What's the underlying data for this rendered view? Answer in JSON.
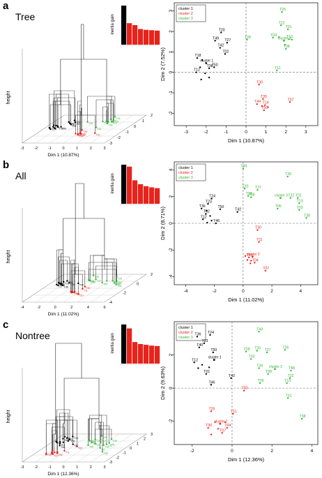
{
  "colors": {
    "cluster1": "#000000",
    "cluster2": "#e8231b",
    "cluster3": "#33b533",
    "axis": "#000000",
    "dash": "#666666"
  },
  "legend_labels": [
    "cluster 1",
    "cluster 2",
    "cluster 3"
  ],
  "panels": [
    {
      "letter": "a",
      "title": "Tree",
      "dendro_ylabel": "height",
      "dendro_xlabel": "Dim 1 (10.87%)",
      "dendro_xticks": [
        "-3",
        "-2",
        "-1",
        "0",
        "1",
        "2",
        "3"
      ],
      "dendro_depth_ticks": [
        "-3",
        "-2",
        "-1",
        "0",
        "1",
        "2"
      ],
      "inertia_ylabel": "inertia gain",
      "inertia_values": [
        1.0,
        0.55,
        0.5,
        0.4,
        0.38,
        0.37,
        0.36
      ],
      "scatter": {
        "xlabel": "Dim 1 (10.87%)",
        "ylabel": "Dim 2 (7.52%)",
        "xlim": [
          -3.6,
          3.6
        ],
        "ylim": [
          -2.6,
          3.4
        ],
        "xticks": [
          -3,
          -2,
          -1,
          0,
          1,
          2,
          3
        ],
        "yticks": [
          -2,
          -1,
          0,
          1,
          2,
          3
        ],
        "points": [
          {
            "x": 1.8,
            "y": 2.95,
            "c": 3,
            "label": "T26"
          },
          {
            "x": 1.75,
            "y": 2.3,
            "c": 3,
            "label": "T22"
          },
          {
            "x": 2.1,
            "y": 2.1,
            "c": 3,
            "label": "T01"
          },
          {
            "x": 1.35,
            "y": 1.7,
            "c": 3,
            "label": "T03"
          },
          {
            "x": 1.65,
            "y": 1.72,
            "c": 3,
            "label": ""
          },
          {
            "x": 2.15,
            "y": 1.62,
            "c": 3,
            "label": "T13"
          },
          {
            "x": 2.3,
            "y": 1.6,
            "c": 3,
            "label": ""
          },
          {
            "x": 1.9,
            "y": 1.55,
            "c": 3,
            "label": "cluster 3"
          },
          {
            "x": 1.95,
            "y": 1.35,
            "c": 3,
            "label": ""
          },
          {
            "x": 2.0,
            "y": 1.15,
            "c": 3,
            "label": "T38"
          },
          {
            "x": 0.05,
            "y": 1.6,
            "c": 3,
            "label": "T28"
          },
          {
            "x": 1.55,
            "y": 0.1,
            "c": 3,
            "label": "T11"
          },
          {
            "x": 0.65,
            "y": -0.6,
            "c": 2,
            "label": "T30"
          },
          {
            "x": 0.85,
            "y": -1.3,
            "c": 2,
            "label": "T35"
          },
          {
            "x": 0.55,
            "y": -1.55,
            "c": 2,
            "label": "T44"
          },
          {
            "x": 0.8,
            "y": -1.65,
            "c": 2,
            "label": ""
          },
          {
            "x": 0.95,
            "y": -1.6,
            "c": 2,
            "label": "T14"
          },
          {
            "x": 1.1,
            "y": -1.7,
            "c": 2,
            "label": ""
          },
          {
            "x": 0.9,
            "y": -1.85,
            "c": 2,
            "label": "T50"
          },
          {
            "x": 2.2,
            "y": -1.45,
            "c": 2,
            "label": "T07"
          },
          {
            "x": -1.25,
            "y": 1.95,
            "c": 1,
            "label": "T20"
          },
          {
            "x": -1.55,
            "y": 1.55,
            "c": 1,
            "label": "T49"
          },
          {
            "x": -0.95,
            "y": 1.45,
            "c": 1,
            "label": "T27"
          },
          {
            "x": -1.3,
            "y": 1.2,
            "c": 1,
            "label": "T42"
          },
          {
            "x": -1.05,
            "y": 0.9,
            "c": 1,
            "label": "T02"
          },
          {
            "x": -2.45,
            "y": 0.7,
            "c": 1,
            "label": "T18"
          },
          {
            "x": -2.2,
            "y": 0.6,
            "c": 1,
            "label": ""
          },
          {
            "x": -2.0,
            "y": 0.45,
            "c": 1,
            "label": "cluster 1"
          },
          {
            "x": -2.3,
            "y": 0.25,
            "c": 1,
            "label": ""
          },
          {
            "x": -1.85,
            "y": 0.2,
            "c": 1,
            "label": "T38"
          },
          {
            "x": -1.6,
            "y": 0.25,
            "c": 1,
            "label": "T50"
          },
          {
            "x": -2.5,
            "y": 0.0,
            "c": 1,
            "label": "T12"
          },
          {
            "x": -2.05,
            "y": -0.05,
            "c": 1,
            "label": ""
          },
          {
            "x": -1.85,
            "y": -0.25,
            "c": 1,
            "label": ""
          },
          {
            "x": -2.25,
            "y": -0.35,
            "c": 1,
            "label": ""
          }
        ]
      }
    },
    {
      "letter": "b",
      "title": "All",
      "dendro_ylabel": "height",
      "dendro_xlabel": "Dim 1 (11.02%)",
      "dendro_xticks": [
        "-4",
        "-2",
        "0",
        "2",
        "4",
        "6"
      ],
      "dendro_depth_ticks": [
        "-4",
        "-2",
        "0",
        "2"
      ],
      "inertia_ylabel": "inertia gain",
      "inertia_values": [
        1.0,
        0.95,
        0.6,
        0.5,
        0.45,
        0.42,
        0.4
      ],
      "scatter": {
        "xlabel": "Dim 1 (11.02%)",
        "ylabel": "Dim 2 (8.71%)",
        "xlim": [
          -4.8,
          5.2
        ],
        "ylim": [
          -4.6,
          4.6
        ],
        "xticks": [
          -4,
          -2,
          0,
          2,
          4
        ],
        "yticks": [
          -4,
          -2,
          0,
          2,
          4
        ],
        "points": [
          {
            "x": 0.0,
            "y": 4.1,
            "c": 3,
            "label": "T49"
          },
          {
            "x": 3.1,
            "y": 3.5,
            "c": 3,
            "label": "T26"
          },
          {
            "x": 0.1,
            "y": 2.6,
            "c": 3,
            "label": "T20"
          },
          {
            "x": 1.0,
            "y": 2.5,
            "c": 3,
            "label": "T27"
          },
          {
            "x": 0.35,
            "y": 2.05,
            "c": 3,
            "label": "T28"
          },
          {
            "x": 0.55,
            "y": 1.95,
            "c": 3,
            "label": "T06"
          },
          {
            "x": 2.6,
            "y": 1.9,
            "c": 3,
            "label": "cluster 3"
          },
          {
            "x": 3.3,
            "y": 1.9,
            "c": 3,
            "label": "T22"
          },
          {
            "x": 3.8,
            "y": 1.9,
            "c": 3,
            "label": "T01"
          },
          {
            "x": 3.9,
            "y": 1.5,
            "c": 3,
            "label": "T13"
          },
          {
            "x": 2.4,
            "y": 1.1,
            "c": 3,
            "label": "T05"
          },
          {
            "x": 3.9,
            "y": 1.0,
            "c": 3,
            "label": "T03"
          },
          {
            "x": 4.4,
            "y": 0.4,
            "c": 3,
            "label": "T38"
          },
          {
            "x": 1.0,
            "y": -0.5,
            "c": 2,
            "label": "T30"
          },
          {
            "x": 1.1,
            "y": -1.4,
            "c": 2,
            "label": "T11"
          },
          {
            "x": 0.15,
            "y": -2.45,
            "c": 2,
            "label": ""
          },
          {
            "x": 0.4,
            "y": -2.55,
            "c": 2,
            "label": "T44"
          },
          {
            "x": 0.65,
            "y": -2.5,
            "c": 2,
            "label": "cluster 2"
          },
          {
            "x": 0.3,
            "y": -2.75,
            "c": 2,
            "label": ""
          },
          {
            "x": 0.55,
            "y": -2.8,
            "c": 2,
            "label": ""
          },
          {
            "x": 0.8,
            "y": -2.95,
            "c": 2,
            "label": "T04"
          },
          {
            "x": 0.5,
            "y": -3.0,
            "c": 2,
            "label": ""
          },
          {
            "x": 1.55,
            "y": -3.55,
            "c": 2,
            "label": "T07"
          },
          {
            "x": -2.2,
            "y": 1.85,
            "c": 1,
            "label": "T24"
          },
          {
            "x": -2.45,
            "y": 1.45,
            "c": 1,
            "label": "T23"
          },
          {
            "x": -2.9,
            "y": 1.1,
            "c": 1,
            "label": "T36"
          },
          {
            "x": -2.55,
            "y": 0.95,
            "c": 1,
            "label": ""
          },
          {
            "x": -1.6,
            "y": 1.05,
            "c": 1,
            "label": "T50"
          },
          {
            "x": -2.6,
            "y": 0.7,
            "c": 1,
            "label": "T02"
          },
          {
            "x": -2.3,
            "y": 0.55,
            "c": 1,
            "label": ""
          },
          {
            "x": -2.8,
            "y": 0.3,
            "c": 1,
            "label": "T12"
          },
          {
            "x": -2.2,
            "y": 0.2,
            "c": 1,
            "label": ""
          },
          {
            "x": -2.5,
            "y": 0.05,
            "c": 1,
            "label": ""
          },
          {
            "x": -1.9,
            "y": 0.0,
            "c": 1,
            "label": "T46"
          },
          {
            "x": -0.4,
            "y": 0.85,
            "c": 1,
            "label": "T42"
          }
        ]
      }
    },
    {
      "letter": "c",
      "title": "Nontree",
      "dendro_ylabel": "height",
      "dendro_xlabel": "Dim 1 (12.36%)",
      "dendro_xticks": [
        "-3",
        "-2",
        "-1",
        "0",
        "1",
        "2",
        "3"
      ],
      "dendro_depth_ticks": [
        "-3",
        "-2",
        "-1",
        "0",
        "1",
        "2",
        "3"
      ],
      "inertia_ylabel": "inertia gain",
      "inertia_values": [
        1.0,
        0.9,
        0.55,
        0.5,
        0.48,
        0.46,
        0.45
      ],
      "scatter": {
        "xlabel": "Dim 1 (12.36%)",
        "ylabel": "Dim 2 (9.63%)",
        "xlim": [
          -2.9,
          4.3
        ],
        "ylim": [
          -3.4,
          4.0
        ],
        "xticks": [
          -2,
          0,
          2,
          4
        ],
        "yticks": [
          -2,
          0,
          2
        ],
        "points": [
          {
            "x": 1.35,
            "y": 3.4,
            "c": 3,
            "label": "T49"
          },
          {
            "x": 0.7,
            "y": 2.2,
            "c": 3,
            "label": "T28"
          },
          {
            "x": 1.25,
            "y": 2.25,
            "c": 3,
            "label": "T20"
          },
          {
            "x": 1.75,
            "y": 2.15,
            "c": 3,
            "label": "T27"
          },
          {
            "x": 2.65,
            "y": 2.3,
            "c": 3,
            "label": "T26"
          },
          {
            "x": 0.95,
            "y": 1.75,
            "c": 3,
            "label": "T02"
          },
          {
            "x": 1.35,
            "y": 1.2,
            "c": 3,
            "label": "T34"
          },
          {
            "x": 2.15,
            "y": 1.15,
            "c": 3,
            "label": "cluster 3"
          },
          {
            "x": 2.95,
            "y": 1.05,
            "c": 3,
            "label": "T48"
          },
          {
            "x": 1.8,
            "y": 0.85,
            "c": 3,
            "label": "T08"
          },
          {
            "x": 2.9,
            "y": 0.6,
            "c": 3,
            "label": "T22"
          },
          {
            "x": 1.4,
            "y": 0.3,
            "c": 3,
            "label": "T05"
          },
          {
            "x": 2.75,
            "y": 0.3,
            "c": 3,
            "label": "T13"
          },
          {
            "x": 2.8,
            "y": -0.6,
            "c": 3,
            "label": "T31"
          },
          {
            "x": 3.5,
            "y": -1.85,
            "c": 3,
            "label": "T38"
          },
          {
            "x": 0.6,
            "y": -0.15,
            "c": 2,
            "label": "T02"
          },
          {
            "x": -1.05,
            "y": -1.4,
            "c": 2,
            "label": "T25"
          },
          {
            "x": 0.05,
            "y": -1.55,
            "c": 2,
            "label": "T11"
          },
          {
            "x": -0.85,
            "y": -2.05,
            "c": 2,
            "label": ""
          },
          {
            "x": -0.6,
            "y": -2.15,
            "c": 2,
            "label": "cluster 2"
          },
          {
            "x": -0.35,
            "y": -2.05,
            "c": 2,
            "label": ""
          },
          {
            "x": -1.2,
            "y": -2.4,
            "c": 2,
            "label": "T30"
          },
          {
            "x": -0.7,
            "y": -2.45,
            "c": 2,
            "label": ""
          },
          {
            "x": -0.25,
            "y": -2.4,
            "c": 2,
            "label": "T04"
          },
          {
            "x": -0.5,
            "y": -2.7,
            "c": 2,
            "label": "T07"
          },
          {
            "x": -1.05,
            "y": -2.8,
            "c": 2,
            "label": ""
          },
          {
            "x": -1.75,
            "y": 3.1,
            "c": 1,
            "label": "T36"
          },
          {
            "x": -1.1,
            "y": 3.2,
            "c": 1,
            "label": "T24"
          },
          {
            "x": -1.4,
            "y": 2.7,
            "c": 1,
            "label": "T23"
          },
          {
            "x": -1.65,
            "y": 2.45,
            "c": 1,
            "label": "T40"
          },
          {
            "x": -0.95,
            "y": 2.15,
            "c": 1,
            "label": "T50"
          },
          {
            "x": -0.9,
            "y": 1.7,
            "c": 1,
            "label": "cluster 1"
          },
          {
            "x": -1.9,
            "y": 1.55,
            "c": 1,
            "label": "T12"
          },
          {
            "x": -1.5,
            "y": 1.4,
            "c": 1,
            "label": ""
          },
          {
            "x": -1.15,
            "y": 1.25,
            "c": 1,
            "label": ""
          },
          {
            "x": -1.7,
            "y": 1.2,
            "c": 1,
            "label": ""
          },
          {
            "x": -1.3,
            "y": 0.85,
            "c": 1,
            "label": "T01"
          },
          {
            "x": -1.05,
            "y": 0.2,
            "c": 1,
            "label": "T46"
          },
          {
            "x": -0.05,
            "y": 0.6,
            "c": 1,
            "label": "T42"
          }
        ]
      }
    }
  ]
}
